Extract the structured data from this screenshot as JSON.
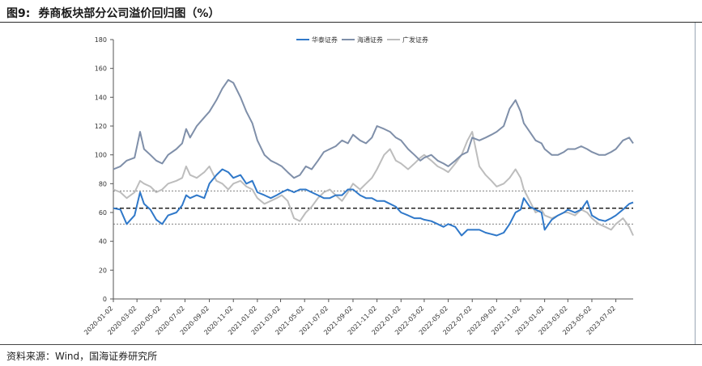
{
  "header": {
    "fig_label": "图9:",
    "title": "券商板块部分公司溢价回归图（%）"
  },
  "footer": {
    "source": "资料来源：Wind，国海证券研究所"
  },
  "chart_data": {
    "type": "line",
    "ylim": [
      0,
      180
    ],
    "yticks": [
      0,
      20,
      40,
      60,
      80,
      100,
      120,
      140,
      160,
      180
    ],
    "x_ticks": [
      "2020-01-02",
      "2020-03-02",
      "2020-05-02",
      "2020-07-02",
      "2020-09-02",
      "2020-11-02",
      "2021-01-02",
      "2021-03-02",
      "2021-05-02",
      "2021-07-02",
      "2021-09-02",
      "2021-11-02",
      "2022-01-02",
      "2022-03-02",
      "2022-05-02",
      "2022-07-02",
      "2022-09-02",
      "2022-11-02",
      "2023-01-02",
      "2023-03-02",
      "2023-05-02",
      "2023-07-02"
    ],
    "legend_position": "top-center",
    "x_end": "2023-08-15",
    "reference_lines": [
      {
        "value": 75,
        "style": "dotted"
      },
      {
        "value": 63,
        "style": "dashed"
      },
      {
        "value": 52,
        "style": "dotted"
      }
    ],
    "series": [
      {
        "name": "华泰证券",
        "color": "#2f78c9",
        "points": [
          [
            "2020-01-02",
            63
          ],
          [
            "2020-01-20",
            62
          ],
          [
            "2020-02-05",
            52
          ],
          [
            "2020-02-25",
            58
          ],
          [
            "2020-03-10",
            74
          ],
          [
            "2020-03-20",
            66
          ],
          [
            "2020-04-05",
            62
          ],
          [
            "2020-04-20",
            55
          ],
          [
            "2020-05-05",
            52
          ],
          [
            "2020-05-20",
            58
          ],
          [
            "2020-06-10",
            60
          ],
          [
            "2020-06-25",
            65
          ],
          [
            "2020-07-05",
            72
          ],
          [
            "2020-07-15",
            70
          ],
          [
            "2020-08-01",
            72
          ],
          [
            "2020-08-20",
            70
          ],
          [
            "2020-09-02",
            80
          ],
          [
            "2020-09-20",
            86
          ],
          [
            "2020-10-05",
            90
          ],
          [
            "2020-10-20",
            88
          ],
          [
            "2020-11-02",
            84
          ],
          [
            "2020-11-20",
            86
          ],
          [
            "2020-12-05",
            80
          ],
          [
            "2020-12-20",
            82
          ],
          [
            "2021-01-02",
            74
          ],
          [
            "2021-01-20",
            72
          ],
          [
            "2021-02-05",
            70
          ],
          [
            "2021-02-20",
            72
          ],
          [
            "2021-03-05",
            74
          ],
          [
            "2021-03-20",
            76
          ],
          [
            "2021-04-05",
            74
          ],
          [
            "2021-04-20",
            76
          ],
          [
            "2021-05-05",
            76
          ],
          [
            "2021-05-20",
            74
          ],
          [
            "2021-06-05",
            72
          ],
          [
            "2021-06-20",
            70
          ],
          [
            "2021-07-05",
            70
          ],
          [
            "2021-07-20",
            72
          ],
          [
            "2021-08-05",
            72
          ],
          [
            "2021-08-20",
            76
          ],
          [
            "2021-09-02",
            76
          ],
          [
            "2021-09-20",
            72
          ],
          [
            "2021-10-05",
            70
          ],
          [
            "2021-10-20",
            70
          ],
          [
            "2021-11-02",
            68
          ],
          [
            "2021-11-20",
            68
          ],
          [
            "2021-12-05",
            66
          ],
          [
            "2021-12-20",
            64
          ],
          [
            "2022-01-02",
            60
          ],
          [
            "2022-01-20",
            58
          ],
          [
            "2022-02-05",
            56
          ],
          [
            "2022-02-20",
            56
          ],
          [
            "2022-03-02",
            55
          ],
          [
            "2022-03-20",
            54
          ],
          [
            "2022-04-05",
            52
          ],
          [
            "2022-04-20",
            50
          ],
          [
            "2022-05-02",
            52
          ],
          [
            "2022-05-20",
            50
          ],
          [
            "2022-06-05",
            44
          ],
          [
            "2022-06-20",
            48
          ],
          [
            "2022-07-02",
            48
          ],
          [
            "2022-07-20",
            48
          ],
          [
            "2022-08-05",
            46
          ],
          [
            "2022-08-20",
            45
          ],
          [
            "2022-09-02",
            44
          ],
          [
            "2022-09-20",
            46
          ],
          [
            "2022-10-05",
            52
          ],
          [
            "2022-10-20",
            60
          ],
          [
            "2022-11-02",
            62
          ],
          [
            "2022-11-10",
            70
          ],
          [
            "2022-11-25",
            64
          ],
          [
            "2022-12-10",
            62
          ],
          [
            "2022-12-25",
            60
          ],
          [
            "2023-01-02",
            48
          ],
          [
            "2023-01-20",
            55
          ],
          [
            "2023-02-05",
            58
          ],
          [
            "2023-02-20",
            60
          ],
          [
            "2023-03-02",
            62
          ],
          [
            "2023-03-20",
            60
          ],
          [
            "2023-04-05",
            62
          ],
          [
            "2023-04-20",
            68
          ],
          [
            "2023-05-02",
            58
          ],
          [
            "2023-05-20",
            55
          ],
          [
            "2023-06-05",
            54
          ],
          [
            "2023-06-20",
            56
          ],
          [
            "2023-07-02",
            58
          ],
          [
            "2023-07-20",
            62
          ],
          [
            "2023-08-05",
            66
          ],
          [
            "2023-08-15",
            67
          ]
        ]
      },
      {
        "name": "海通证券",
        "color": "#7f8fa9",
        "points": [
          [
            "2020-01-02",
            90
          ],
          [
            "2020-01-20",
            92
          ],
          [
            "2020-02-05",
            96
          ],
          [
            "2020-02-25",
            98
          ],
          [
            "2020-03-10",
            116
          ],
          [
            "2020-03-20",
            104
          ],
          [
            "2020-04-05",
            100
          ],
          [
            "2020-04-20",
            96
          ],
          [
            "2020-05-05",
            94
          ],
          [
            "2020-05-20",
            100
          ],
          [
            "2020-06-10",
            104
          ],
          [
            "2020-06-25",
            108
          ],
          [
            "2020-07-05",
            118
          ],
          [
            "2020-07-15",
            112
          ],
          [
            "2020-08-01",
            120
          ],
          [
            "2020-08-20",
            126
          ],
          [
            "2020-09-02",
            130
          ],
          [
            "2020-09-20",
            138
          ],
          [
            "2020-10-05",
            146
          ],
          [
            "2020-10-20",
            152
          ],
          [
            "2020-11-02",
            150
          ],
          [
            "2020-11-20",
            140
          ],
          [
            "2020-12-05",
            130
          ],
          [
            "2020-12-20",
            122
          ],
          [
            "2021-01-02",
            110
          ],
          [
            "2021-01-20",
            100
          ],
          [
            "2021-02-05",
            96
          ],
          [
            "2021-02-20",
            94
          ],
          [
            "2021-03-05",
            92
          ],
          [
            "2021-03-20",
            88
          ],
          [
            "2021-04-05",
            84
          ],
          [
            "2021-04-20",
            86
          ],
          [
            "2021-05-05",
            92
          ],
          [
            "2021-05-20",
            90
          ],
          [
            "2021-06-05",
            96
          ],
          [
            "2021-06-20",
            102
          ],
          [
            "2021-07-05",
            104
          ],
          [
            "2021-07-20",
            106
          ],
          [
            "2021-08-05",
            110
          ],
          [
            "2021-08-20",
            108
          ],
          [
            "2021-09-02",
            114
          ],
          [
            "2021-09-20",
            110
          ],
          [
            "2021-10-05",
            108
          ],
          [
            "2021-10-20",
            112
          ],
          [
            "2021-11-02",
            120
          ],
          [
            "2021-11-20",
            118
          ],
          [
            "2021-12-05",
            116
          ],
          [
            "2021-12-20",
            112
          ],
          [
            "2022-01-02",
            110
          ],
          [
            "2022-01-20",
            104
          ],
          [
            "2022-02-05",
            100
          ],
          [
            "2022-02-20",
            96
          ],
          [
            "2022-03-02",
            98
          ],
          [
            "2022-03-20",
            100
          ],
          [
            "2022-04-05",
            96
          ],
          [
            "2022-04-20",
            94
          ],
          [
            "2022-05-02",
            92
          ],
          [
            "2022-05-20",
            96
          ],
          [
            "2022-06-05",
            100
          ],
          [
            "2022-06-20",
            102
          ],
          [
            "2022-07-02",
            112
          ],
          [
            "2022-07-20",
            110
          ],
          [
            "2022-08-05",
            112
          ],
          [
            "2022-08-20",
            114
          ],
          [
            "2022-09-02",
            116
          ],
          [
            "2022-09-20",
            120
          ],
          [
            "2022-10-05",
            132
          ],
          [
            "2022-10-20",
            138
          ],
          [
            "2022-11-02",
            130
          ],
          [
            "2022-11-10",
            122
          ],
          [
            "2022-11-25",
            116
          ],
          [
            "2022-12-10",
            110
          ],
          [
            "2022-12-25",
            108
          ],
          [
            "2023-01-02",
            104
          ],
          [
            "2023-01-20",
            100
          ],
          [
            "2023-02-05",
            100
          ],
          [
            "2023-02-20",
            102
          ],
          [
            "2023-03-02",
            104
          ],
          [
            "2023-03-20",
            104
          ],
          [
            "2023-04-05",
            106
          ],
          [
            "2023-04-20",
            104
          ],
          [
            "2023-05-02",
            102
          ],
          [
            "2023-05-20",
            100
          ],
          [
            "2023-06-05",
            100
          ],
          [
            "2023-06-20",
            102
          ],
          [
            "2023-07-02",
            104
          ],
          [
            "2023-07-20",
            110
          ],
          [
            "2023-08-05",
            112
          ],
          [
            "2023-08-15",
            108
          ]
        ]
      },
      {
        "name": "广发证券",
        "color": "#bdbdbd",
        "points": [
          [
            "2020-01-02",
            76
          ],
          [
            "2020-01-20",
            74
          ],
          [
            "2020-02-05",
            70
          ],
          [
            "2020-02-25",
            74
          ],
          [
            "2020-03-10",
            82
          ],
          [
            "2020-03-20",
            80
          ],
          [
            "2020-04-05",
            78
          ],
          [
            "2020-04-20",
            74
          ],
          [
            "2020-05-05",
            76
          ],
          [
            "2020-05-20",
            80
          ],
          [
            "2020-06-10",
            82
          ],
          [
            "2020-06-25",
            84
          ],
          [
            "2020-07-05",
            92
          ],
          [
            "2020-07-15",
            86
          ],
          [
            "2020-08-01",
            84
          ],
          [
            "2020-08-20",
            88
          ],
          [
            "2020-09-02",
            92
          ],
          [
            "2020-09-20",
            82
          ],
          [
            "2020-10-05",
            80
          ],
          [
            "2020-10-20",
            76
          ],
          [
            "2020-11-02",
            80
          ],
          [
            "2020-11-20",
            82
          ],
          [
            "2020-12-05",
            78
          ],
          [
            "2020-12-20",
            76
          ],
          [
            "2021-01-02",
            70
          ],
          [
            "2021-01-20",
            66
          ],
          [
            "2021-02-05",
            68
          ],
          [
            "2021-02-20",
            70
          ],
          [
            "2021-03-05",
            72
          ],
          [
            "2021-03-20",
            68
          ],
          [
            "2021-04-05",
            56
          ],
          [
            "2021-04-20",
            54
          ],
          [
            "2021-05-05",
            60
          ],
          [
            "2021-05-20",
            64
          ],
          [
            "2021-06-05",
            70
          ],
          [
            "2021-06-20",
            74
          ],
          [
            "2021-07-05",
            76
          ],
          [
            "2021-07-20",
            72
          ],
          [
            "2021-08-05",
            68
          ],
          [
            "2021-08-20",
            74
          ],
          [
            "2021-09-02",
            80
          ],
          [
            "2021-09-20",
            76
          ],
          [
            "2021-10-05",
            80
          ],
          [
            "2021-10-20",
            84
          ],
          [
            "2021-11-02",
            90
          ],
          [
            "2021-11-20",
            100
          ],
          [
            "2021-12-05",
            104
          ],
          [
            "2021-12-20",
            96
          ],
          [
            "2022-01-02",
            94
          ],
          [
            "2022-01-20",
            90
          ],
          [
            "2022-02-05",
            94
          ],
          [
            "2022-02-20",
            98
          ],
          [
            "2022-03-02",
            100
          ],
          [
            "2022-03-20",
            96
          ],
          [
            "2022-04-05",
            92
          ],
          [
            "2022-04-20",
            90
          ],
          [
            "2022-05-02",
            88
          ],
          [
            "2022-05-20",
            94
          ],
          [
            "2022-06-05",
            100
          ],
          [
            "2022-06-20",
            110
          ],
          [
            "2022-07-02",
            116
          ],
          [
            "2022-07-20",
            92
          ],
          [
            "2022-08-05",
            86
          ],
          [
            "2022-08-20",
            82
          ],
          [
            "2022-09-02",
            78
          ],
          [
            "2022-09-20",
            80
          ],
          [
            "2022-10-05",
            84
          ],
          [
            "2022-10-20",
            90
          ],
          [
            "2022-11-02",
            84
          ],
          [
            "2022-11-10",
            76
          ],
          [
            "2022-11-25",
            68
          ],
          [
            "2022-12-10",
            60
          ],
          [
            "2022-12-25",
            62
          ],
          [
            "2023-01-02",
            58
          ],
          [
            "2023-01-20",
            56
          ],
          [
            "2023-02-05",
            58
          ],
          [
            "2023-02-20",
            60
          ],
          [
            "2023-03-02",
            60
          ],
          [
            "2023-03-20",
            58
          ],
          [
            "2023-04-05",
            62
          ],
          [
            "2023-04-20",
            60
          ],
          [
            "2023-05-02",
            56
          ],
          [
            "2023-05-20",
            52
          ],
          [
            "2023-06-05",
            50
          ],
          [
            "2023-06-20",
            48
          ],
          [
            "2023-07-02",
            52
          ],
          [
            "2023-07-20",
            56
          ],
          [
            "2023-08-05",
            50
          ],
          [
            "2023-08-15",
            44
          ]
        ]
      }
    ]
  }
}
